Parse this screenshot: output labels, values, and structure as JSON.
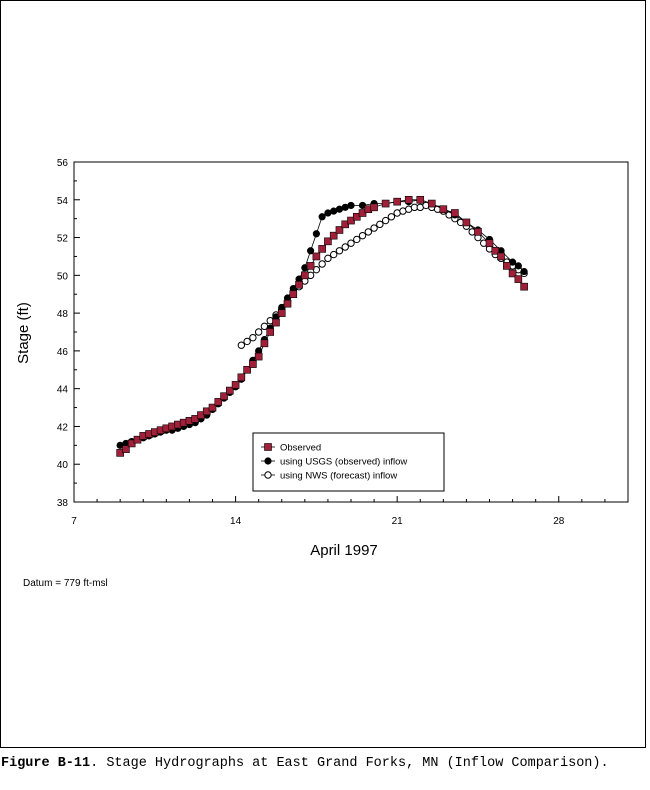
{
  "figure": {
    "label": "Figure B-11",
    "caption": ".  Stage Hydrographs at East Grand Forks, MN (Inflow Comparison).",
    "datum_note": "Datum = 779 ft-msl"
  },
  "chart_data": {
    "type": "scatter",
    "xlabel": "April 1997",
    "ylabel": "Stage (ft)",
    "xlim": [
      7,
      31
    ],
    "ylim": [
      38,
      56
    ],
    "x_ticks": [
      7,
      14,
      21,
      28
    ],
    "y_ticks": [
      38,
      40,
      42,
      44,
      46,
      48,
      50,
      52,
      54,
      56
    ],
    "grid": false,
    "legend": "bottom-center",
    "colors": {
      "observed": "#a0203a",
      "usgs": "#000000",
      "nws": "#000000"
    },
    "series": [
      {
        "name": "Observed",
        "marker": "square",
        "x": [
          9.0,
          9.25,
          9.5,
          9.75,
          10.0,
          10.25,
          10.5,
          10.75,
          11.0,
          11.25,
          11.5,
          11.75,
          12.0,
          12.25,
          12.5,
          12.75,
          13.0,
          13.25,
          13.5,
          13.75,
          14.0,
          14.25,
          14.5,
          14.75,
          15.0,
          15.25,
          15.5,
          15.75,
          16.0,
          16.25,
          16.5,
          16.75,
          17.0,
          17.25,
          17.5,
          17.75,
          18.0,
          18.25,
          18.5,
          18.75,
          19.0,
          19.25,
          19.5,
          19.75,
          20.0,
          20.5,
          21.0,
          21.5,
          22.0,
          22.5,
          23.0,
          23.5,
          24.0,
          24.5,
          25.0,
          25.25,
          25.5,
          25.75,
          26.0,
          26.25,
          26.5
        ],
        "y": [
          40.6,
          40.8,
          41.1,
          41.3,
          41.5,
          41.6,
          41.7,
          41.8,
          41.9,
          42.0,
          42.1,
          42.2,
          42.3,
          42.4,
          42.6,
          42.8,
          43.0,
          43.3,
          43.6,
          43.9,
          44.2,
          44.6,
          45.0,
          45.3,
          45.7,
          46.4,
          47.0,
          47.5,
          48.0,
          48.5,
          49.0,
          49.5,
          50.0,
          50.5,
          51.0,
          51.4,
          51.8,
          52.1,
          52.4,
          52.7,
          52.9,
          53.1,
          53.3,
          53.5,
          53.6,
          53.8,
          53.9,
          54.0,
          54.0,
          53.8,
          53.5,
          53.3,
          52.8,
          52.3,
          51.7,
          51.3,
          51.0,
          50.5,
          50.1,
          49.8,
          49.4
        ]
      },
      {
        "name": "using USGS (observed) inflow",
        "marker": "filled-circle",
        "x": [
          9.0,
          9.25,
          9.5,
          9.75,
          10.0,
          10.25,
          10.5,
          10.75,
          11.0,
          11.25,
          11.5,
          11.75,
          12.0,
          12.25,
          12.5,
          12.75,
          13.0,
          13.25,
          13.5,
          13.75,
          14.0,
          14.25,
          14.5,
          14.75,
          15.0,
          15.25,
          15.5,
          15.75,
          16.0,
          16.25,
          16.5,
          16.75,
          17.0,
          17.25,
          17.5,
          17.75,
          18.0,
          18.25,
          18.5,
          18.75,
          19.0,
          19.5,
          20.0,
          20.5,
          21.0,
          21.5,
          22.0,
          22.5,
          23.0,
          23.5,
          24.0,
          24.5,
          25.0,
          25.5,
          26.0,
          26.25,
          26.5
        ],
        "y": [
          41.0,
          41.1,
          41.2,
          41.3,
          41.4,
          41.5,
          41.6,
          41.7,
          41.8,
          41.8,
          41.9,
          42.0,
          42.1,
          42.2,
          42.4,
          42.6,
          42.9,
          43.2,
          43.5,
          43.8,
          44.1,
          44.5,
          45.0,
          45.5,
          46.0,
          46.6,
          47.2,
          47.8,
          48.3,
          48.8,
          49.3,
          49.8,
          50.4,
          51.3,
          52.2,
          53.1,
          53.3,
          53.4,
          53.5,
          53.6,
          53.7,
          53.7,
          53.8,
          53.8,
          53.9,
          53.9,
          54.0,
          53.8,
          53.5,
          53.2,
          52.8,
          52.4,
          51.9,
          51.3,
          50.7,
          50.5,
          50.2
        ]
      },
      {
        "name": "using NWS (forecast)  inflow",
        "marker": "open-circle",
        "x": [
          14.25,
          14.5,
          14.75,
          15.0,
          15.25,
          15.5,
          15.75,
          16.0,
          16.25,
          16.5,
          16.75,
          17.0,
          17.25,
          17.5,
          17.75,
          18.0,
          18.25,
          18.5,
          18.75,
          19.0,
          19.25,
          19.5,
          19.75,
          20.0,
          20.25,
          20.5,
          20.75,
          21.0,
          21.25,
          21.5,
          21.75,
          22.0,
          22.25,
          22.5,
          22.75,
          23.0,
          23.25,
          23.5,
          23.75,
          24.0,
          24.25,
          24.5,
          24.75,
          25.0,
          25.25,
          25.5,
          25.75,
          26.0,
          26.25,
          26.5
        ],
        "y": [
          46.3,
          46.5,
          46.7,
          47.0,
          47.3,
          47.6,
          47.9,
          48.2,
          48.6,
          49.0,
          49.4,
          49.7,
          50.0,
          50.3,
          50.6,
          50.9,
          51.1,
          51.3,
          51.5,
          51.7,
          51.9,
          52.1,
          52.3,
          52.5,
          52.7,
          52.9,
          53.1,
          53.3,
          53.4,
          53.5,
          53.6,
          53.6,
          53.7,
          53.6,
          53.5,
          53.4,
          53.2,
          53.0,
          52.8,
          52.6,
          52.3,
          52.0,
          51.7,
          51.4,
          51.1,
          50.9,
          50.7,
          50.5,
          50.3,
          50.1
        ]
      }
    ]
  }
}
